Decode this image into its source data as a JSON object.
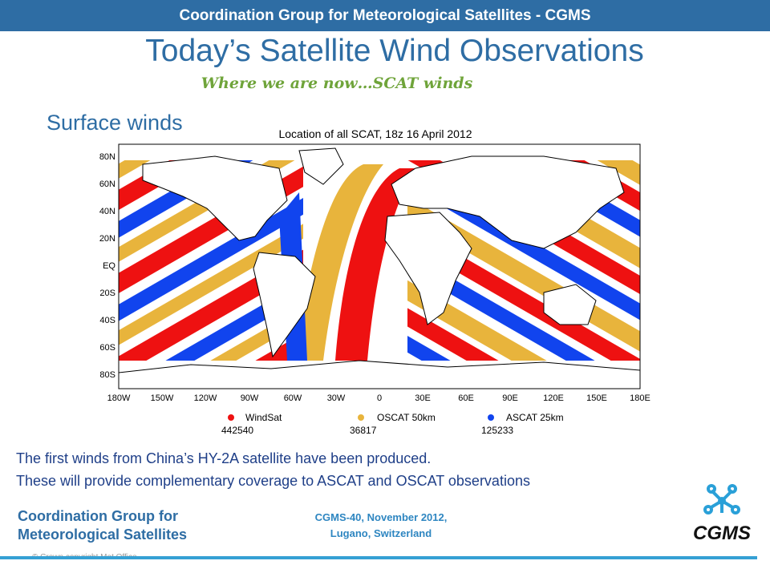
{
  "header": {
    "bar_text": "Coordination Group for Meteorological Satellites - CGMS"
  },
  "slide": {
    "title": "Today’s Satellite Wind Observations",
    "subtitle": "Where we are now…SCAT winds",
    "section_label": "Surface winds"
  },
  "map": {
    "title": "Location of all SCAT, 18z 16 April 2012",
    "lat_labels": [
      "80N",
      "60N",
      "40N",
      "20N",
      "EQ",
      "20S",
      "40S",
      "60S",
      "80S"
    ],
    "lon_labels": [
      "180W",
      "150W",
      "120W",
      "90W",
      "60W",
      "30W",
      "0",
      "30E",
      "60E",
      "90E",
      "120E",
      "150E",
      "180E"
    ],
    "legend": [
      {
        "name": "WindSat",
        "count": "442540",
        "color": "#ee1111"
      },
      {
        "name": "OSCAT 50km",
        "count": "36817",
        "color": "#e8b43c"
      },
      {
        "name": "ASCAT 25km",
        "count": "125233",
        "color": "#1144ee"
      }
    ]
  },
  "body": {
    "line1": "The first winds from China’s HY-2A satellite have been produced.",
    "line2": "These will provide complementary coverage to ASCAT and OSCAT observations"
  },
  "footer": {
    "org_line1": "Coordination Group for",
    "org_line2": "Meteorological Satellites",
    "meeting_line1": "CGMS-40, November 2012,",
    "meeting_line2": "Lugano, Switzerland",
    "copyright": "© Crown copyright  Met Office",
    "logo_text": "CGMS",
    "colors": {
      "accent": "#2e6da4",
      "line": "#35a0d4"
    }
  }
}
